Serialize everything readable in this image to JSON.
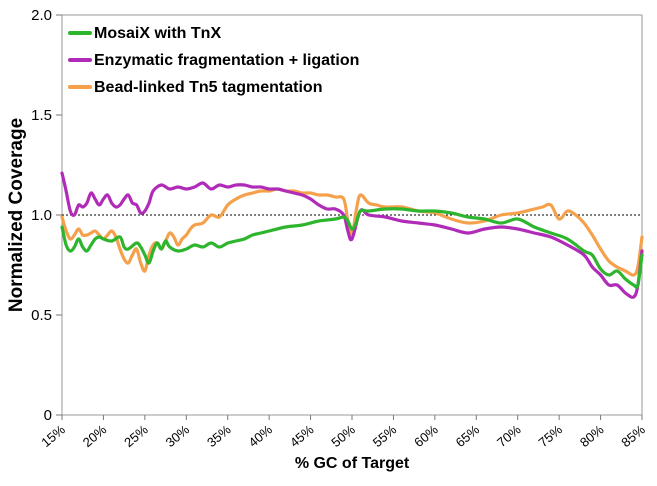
{
  "chart_data": {
    "type": "line",
    "title": "",
    "xlabel": "% GC of Target",
    "ylabel": "Normalized Coverage",
    "xlim": [
      15,
      85
    ],
    "ylim": [
      0,
      2.0
    ],
    "yticks": [
      0,
      0.5,
      1.0,
      1.5,
      2.0
    ],
    "ytick_labels": [
      "0",
      "0.5",
      "1.0",
      "1.5",
      "2.0"
    ],
    "xticks": [
      15,
      20,
      25,
      30,
      35,
      40,
      45,
      50,
      55,
      60,
      65,
      70,
      75,
      80,
      85
    ],
    "xtick_labels": [
      "15%",
      "20%",
      "25%",
      "30%",
      "35%",
      "40%",
      "45%",
      "50%",
      "55%",
      "60%",
      "65%",
      "70%",
      "75%",
      "80%",
      "85%"
    ],
    "reference_line": {
      "y": 1.0,
      "style": "dotted"
    },
    "legend_position": "top-left",
    "series": [
      {
        "name": "MosaiX with TnX",
        "color": "#2db52d",
        "x": [
          15,
          15.5,
          16,
          16.5,
          17,
          17.5,
          18,
          18.5,
          19,
          19.5,
          20,
          21,
          22,
          22.5,
          23,
          24,
          24.5,
          25,
          25.5,
          26,
          26.5,
          27,
          27.5,
          28,
          29,
          30,
          31,
          32,
          33,
          34,
          35,
          36,
          37,
          38,
          39,
          40,
          42,
          44,
          46,
          48,
          49,
          49.5,
          50,
          50.5,
          51,
          52,
          54,
          56,
          58,
          60,
          62,
          64,
          66,
          68,
          70,
          72,
          74,
          76,
          78,
          79,
          80,
          81,
          82,
          83,
          84,
          84.5,
          85
        ],
        "values": [
          0.94,
          0.85,
          0.82,
          0.84,
          0.88,
          0.84,
          0.82,
          0.85,
          0.88,
          0.89,
          0.88,
          0.87,
          0.89,
          0.84,
          0.83,
          0.86,
          0.84,
          0.8,
          0.76,
          0.82,
          0.86,
          0.83,
          0.87,
          0.84,
          0.82,
          0.83,
          0.85,
          0.84,
          0.86,
          0.84,
          0.86,
          0.87,
          0.88,
          0.9,
          0.91,
          0.92,
          0.94,
          0.95,
          0.97,
          0.98,
          0.99,
          0.97,
          0.93,
          0.96,
          1.02,
          1.02,
          1.03,
          1.03,
          1.02,
          1.02,
          1.01,
          0.99,
          0.98,
          0.96,
          0.98,
          0.94,
          0.91,
          0.88,
          0.82,
          0.8,
          0.73,
          0.7,
          0.72,
          0.68,
          0.65,
          0.65,
          0.8
        ]
      },
      {
        "name": "Enzymatic fragmentation + ligation",
        "color": "#b02bb8",
        "x": [
          15,
          15.5,
          16,
          16.5,
          17,
          17.5,
          18,
          18.5,
          19,
          19.5,
          20,
          20.5,
          21,
          21.5,
          22,
          22.5,
          23,
          23.5,
          24,
          24.5,
          25,
          25.5,
          26,
          27,
          28,
          29,
          30,
          31,
          32,
          33,
          34,
          35,
          36,
          37,
          38,
          39,
          40,
          41,
          42,
          43,
          44,
          45,
          46,
          47,
          48,
          49,
          49.5,
          50,
          51,
          52,
          54,
          56,
          58,
          60,
          62,
          64,
          66,
          68,
          70,
          72,
          74,
          76,
          78,
          79,
          80,
          81,
          82,
          83,
          84,
          84.5,
          85
        ],
        "values": [
          1.21,
          1.12,
          1.02,
          1.0,
          1.05,
          1.04,
          1.06,
          1.11,
          1.08,
          1.05,
          1.08,
          1.1,
          1.06,
          1.04,
          1.05,
          1.08,
          1.1,
          1.06,
          1.05,
          1.01,
          1.02,
          1.06,
          1.12,
          1.15,
          1.13,
          1.14,
          1.13,
          1.14,
          1.16,
          1.13,
          1.15,
          1.14,
          1.15,
          1.15,
          1.14,
          1.14,
          1.13,
          1.13,
          1.12,
          1.11,
          1.1,
          1.08,
          1.05,
          1.03,
          1.03,
          1.0,
          0.92,
          0.88,
          1.02,
          1.0,
          0.99,
          0.97,
          0.96,
          0.95,
          0.93,
          0.91,
          0.93,
          0.94,
          0.93,
          0.91,
          0.89,
          0.85,
          0.8,
          0.74,
          0.7,
          0.65,
          0.65,
          0.61,
          0.59,
          0.65,
          0.82
        ]
      },
      {
        "name": "Bead-linked Tn5 tagmentation",
        "color": "#f5a04a",
        "x": [
          15,
          15.5,
          16,
          16.5,
          17,
          17.5,
          18,
          18.5,
          19,
          19.5,
          20,
          20.5,
          21,
          21.5,
          22,
          22.5,
          23,
          23.5,
          24,
          24.5,
          25,
          25.5,
          26,
          26.5,
          27,
          27.5,
          28,
          28.5,
          29,
          29.5,
          30,
          30.5,
          31,
          32,
          33,
          34,
          35,
          36,
          37,
          38,
          39,
          40,
          41,
          42,
          43,
          44,
          45,
          46,
          47,
          48,
          49,
          49.5,
          50,
          50.5,
          51,
          52,
          53,
          54,
          56,
          58,
          60,
          62,
          64,
          66,
          68,
          70,
          72,
          73,
          74,
          75,
          76,
          77,
          78,
          79,
          80,
          81,
          82,
          83,
          84,
          84.5,
          85
        ],
        "values": [
          0.99,
          0.92,
          0.88,
          0.9,
          0.93,
          0.9,
          0.9,
          0.91,
          0.92,
          0.9,
          0.88,
          0.9,
          0.92,
          0.89,
          0.83,
          0.78,
          0.76,
          0.8,
          0.83,
          0.76,
          0.72,
          0.8,
          0.85,
          0.86,
          0.83,
          0.87,
          0.91,
          0.89,
          0.85,
          0.88,
          0.9,
          0.93,
          0.95,
          0.96,
          1.0,
          0.99,
          1.05,
          1.08,
          1.1,
          1.11,
          1.12,
          1.12,
          1.13,
          1.12,
          1.12,
          1.11,
          1.11,
          1.1,
          1.1,
          1.09,
          1.08,
          0.97,
          0.9,
          1.02,
          1.1,
          1.06,
          1.05,
          1.04,
          1.04,
          1.02,
          1.01,
          0.98,
          0.96,
          0.97,
          1.0,
          1.01,
          1.03,
          1.04,
          1.05,
          0.98,
          1.02,
          1.0,
          0.96,
          0.9,
          0.83,
          0.77,
          0.74,
          0.72,
          0.7,
          0.74,
          0.89
        ]
      }
    ]
  }
}
